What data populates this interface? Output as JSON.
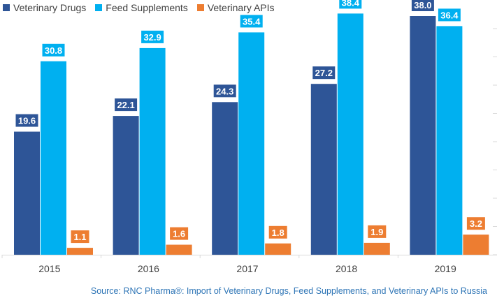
{
  "chart_data": {
    "type": "bar",
    "categories": [
      "2015",
      "2016",
      "2017",
      "2018",
      "2019"
    ],
    "series": [
      {
        "name": "Veterinary Drugs",
        "color": "#2e5597",
        "values": [
          19.6,
          22.1,
          24.3,
          27.2,
          38.0
        ]
      },
      {
        "name": "Feed Supplements",
        "color": "#00b0f0",
        "values": [
          30.8,
          32.9,
          35.4,
          38.4,
          36.4
        ]
      },
      {
        "name": "Veterinary APIs",
        "color": "#ed7d31",
        "values": [
          1.1,
          1.6,
          1.8,
          1.9,
          3.2
        ]
      }
    ],
    "ylim": [
      0,
      40
    ],
    "legend_position": "top-left",
    "data_labels": true,
    "gridlines": false
  },
  "source_text": "Source: RNC Pharma®: Import of Veterinary Drugs, Feed Supplements, and Veterinary APIs to Russia"
}
